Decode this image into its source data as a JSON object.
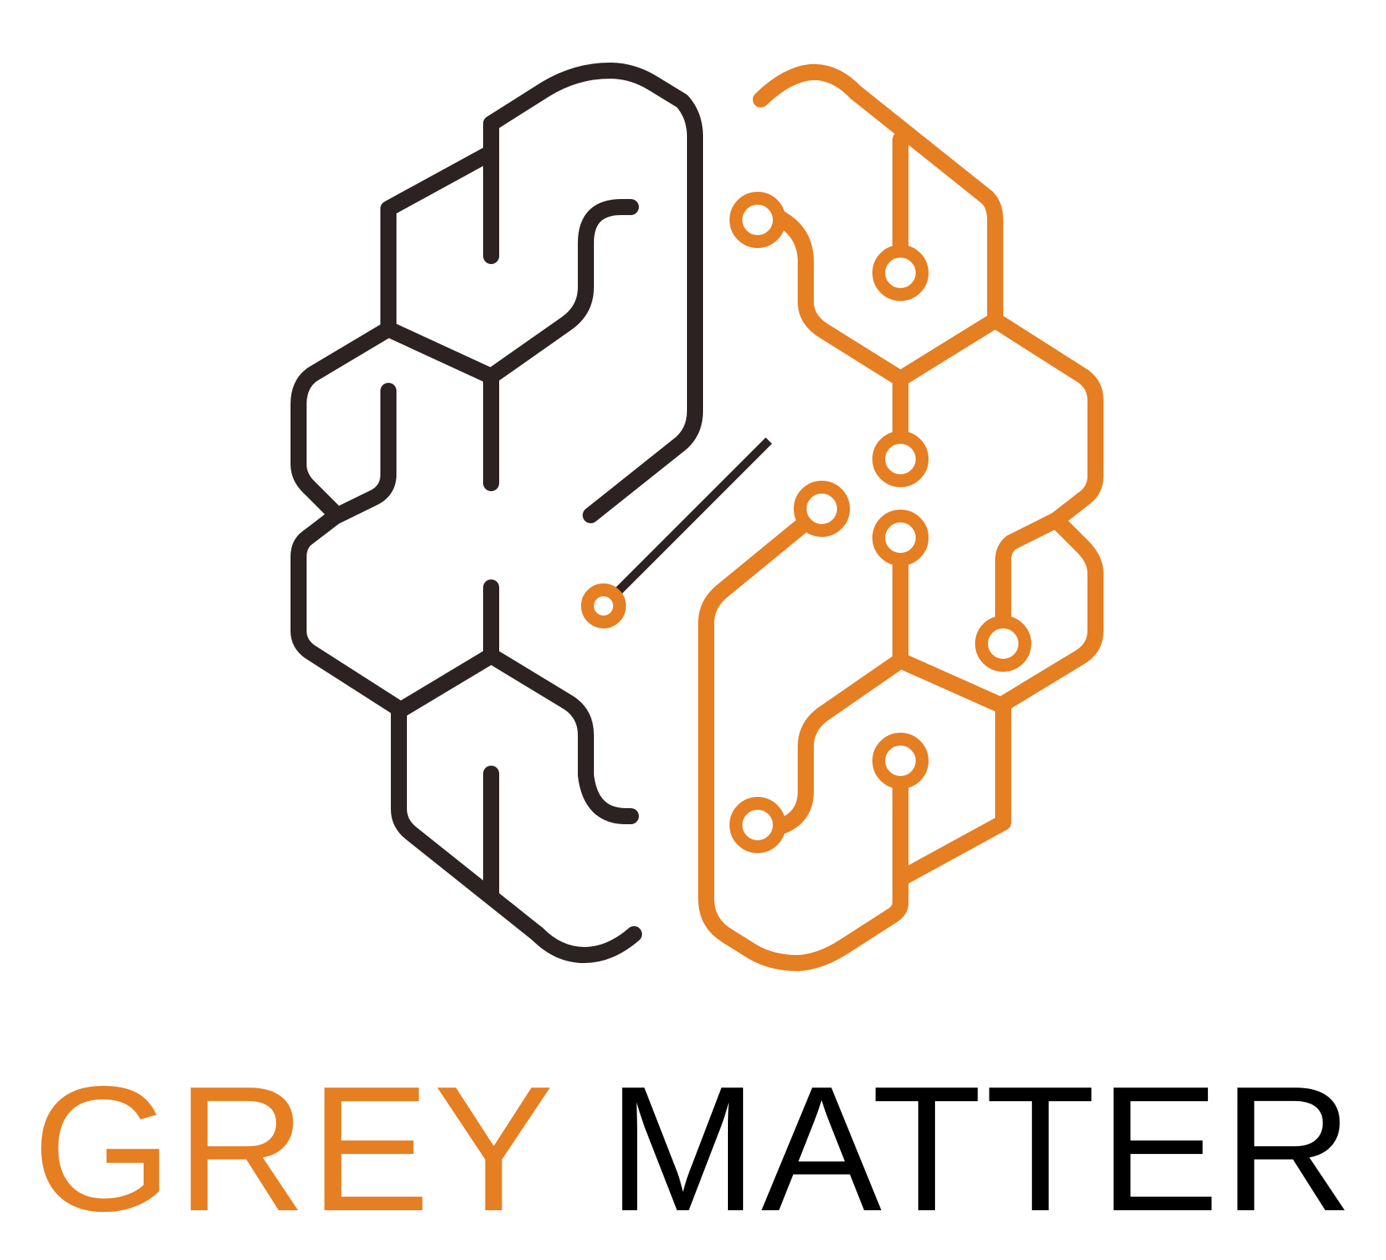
{
  "logo": {
    "word_primary": "GREY",
    "word_secondary": "MATTER",
    "colors": {
      "dark": "#2b2221",
      "orange": "#e67e22",
      "text_dark": "#000000",
      "background": "#ffffff"
    }
  }
}
